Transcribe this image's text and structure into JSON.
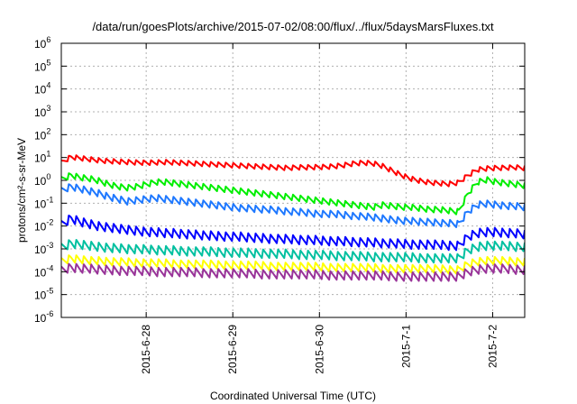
{
  "chart_data": {
    "type": "line",
    "title": "/data/run/goesPlots/archive/2015-07-02/08:00/flux/../flux/5daysMarsFluxes.txt",
    "xlabel": "Coordinated Universal Time (UTC)",
    "ylabel": "protons/cm²-s-sr-MeV",
    "yscale": "log",
    "ylim": [
      1e-06,
      1000000.0
    ],
    "xlim_days": [
      -1.98,
      1.37
    ],
    "x_ticks": [
      {
        "label": "2015-6-28",
        "day": -1.0
      },
      {
        "label": "2015-6-29",
        "day": 0.0
      },
      {
        "label": "2015-6-30",
        "day": 1.0
      },
      {
        "label": "2015-7-1",
        "day": 2.0
      },
      {
        "label": "2015-7-2",
        "day": 3.0
      }
    ],
    "y_ticks": [
      "-6",
      "-5",
      "-4",
      "-3",
      "-2",
      "-1",
      "0",
      "1",
      "2",
      "3",
      "4",
      "5",
      "6"
    ],
    "grid": true,
    "legend": "none",
    "series": [
      {
        "color": "#ff0000",
        "start_day": -1.98,
        "end_day": 3.37,
        "points": 50,
        "log10_values": [
          0.75,
          1.0,
          0.95,
          0.9,
          0.85,
          0.82,
          0.8,
          0.78,
          0.76,
          0.75,
          0.76,
          0.78,
          0.76,
          0.74,
          0.72,
          0.7,
          0.68,
          0.66,
          0.64,
          0.62,
          0.6,
          0.58,
          0.56,
          0.54,
          0.52,
          0.55,
          0.55,
          0.56,
          0.57,
          0.6,
          0.65,
          0.72,
          0.75,
          0.72,
          0.6,
          0.4,
          0.2,
          0.05,
          -0.05,
          -0.12,
          -0.15,
          -0.18,
          -0.12,
          0.2,
          0.45,
          0.5,
          0.52,
          0.53,
          0.55,
          0.52
        ],
        "sawtooth": 0.25
      },
      {
        "color": "#00ee00",
        "start_day": -1.98,
        "end_day": 3.37,
        "points": 50,
        "log10_values": [
          0.0,
          0.2,
          0.1,
          0.05,
          -0.05,
          -0.2,
          -0.3,
          -0.35,
          -0.3,
          -0.2,
          -0.1,
          -0.1,
          -0.15,
          -0.2,
          -0.25,
          -0.3,
          -0.35,
          -0.4,
          -0.45,
          -0.5,
          -0.55,
          -0.6,
          -0.65,
          -0.7,
          -0.75,
          -0.8,
          -0.85,
          -0.9,
          -0.95,
          -1.0,
          -1.05,
          -1.1,
          -1.15,
          -1.2,
          -1.1,
          -1.15,
          -1.2,
          -1.2,
          -1.25,
          -1.3,
          -1.3,
          -1.35,
          -1.4,
          -0.6,
          -0.1,
          0.0,
          -0.1,
          -0.15,
          -0.2,
          -0.25
        ],
        "sawtooth": 0.3
      },
      {
        "color": "#1e78ff",
        "start_day": -1.98,
        "end_day": 3.37,
        "points": 50,
        "log10_values": [
          -0.5,
          -0.3,
          -0.4,
          -0.5,
          -0.6,
          -0.75,
          -0.85,
          -0.95,
          -0.9,
          -0.85,
          -0.8,
          -0.85,
          -0.9,
          -0.95,
          -1.0,
          -1.05,
          -1.1,
          -1.15,
          -1.2,
          -1.25,
          -1.25,
          -1.3,
          -1.3,
          -1.35,
          -1.4,
          -1.4,
          -1.45,
          -1.5,
          -1.5,
          -1.5,
          -1.55,
          -1.6,
          -1.6,
          -1.65,
          -1.7,
          -1.75,
          -1.8,
          -1.8,
          -1.85,
          -1.85,
          -1.9,
          -1.9,
          -1.95,
          -1.4,
          -1.1,
          -1.05,
          -1.1,
          -1.15,
          -1.15,
          -1.2
        ],
        "sawtooth": 0.35
      },
      {
        "color": "#0000ff",
        "start_day": -1.98,
        "end_day": 3.37,
        "points": 50,
        "log10_values": [
          -2.0,
          -1.7,
          -1.85,
          -1.95,
          -2.05,
          -2.1,
          -2.15,
          -2.2,
          -2.25,
          -2.3,
          -2.3,
          -2.35,
          -2.35,
          -2.4,
          -2.4,
          -2.45,
          -2.45,
          -2.5,
          -2.5,
          -2.5,
          -2.55,
          -2.55,
          -2.6,
          -2.6,
          -2.6,
          -2.65,
          -2.65,
          -2.65,
          -2.7,
          -2.7,
          -2.7,
          -2.75,
          -2.75,
          -2.75,
          -2.8,
          -2.8,
          -2.8,
          -2.85,
          -2.85,
          -2.85,
          -2.85,
          -2.9,
          -2.9,
          -2.5,
          -2.35,
          -2.3,
          -2.3,
          -2.35,
          -2.35,
          -2.4
        ],
        "sawtooth": 0.45
      },
      {
        "color": "#00c0a0",
        "start_day": -1.98,
        "end_day": 3.37,
        "points": 50,
        "log10_values": [
          -3.0,
          -2.8,
          -2.85,
          -2.9,
          -2.95,
          -3.0,
          -3.0,
          -3.05,
          -3.05,
          -3.05,
          -3.1,
          -3.1,
          -3.1,
          -3.15,
          -3.15,
          -3.15,
          -3.15,
          -3.2,
          -3.2,
          -3.2,
          -3.2,
          -3.25,
          -3.25,
          -3.25,
          -3.25,
          -3.3,
          -3.3,
          -3.3,
          -3.3,
          -3.35,
          -3.35,
          -3.35,
          -3.35,
          -3.4,
          -3.4,
          -3.4,
          -3.4,
          -3.4,
          -3.45,
          -3.45,
          -3.45,
          -3.45,
          -3.45,
          -3.1,
          -2.95,
          -2.9,
          -2.9,
          -2.9,
          -2.95,
          -2.95
        ],
        "sawtooth": 0.45
      },
      {
        "color": "#ffff00",
        "start_day": -1.98,
        "end_day": 3.37,
        "points": 50,
        "log10_values": [
          -3.6,
          -3.45,
          -3.5,
          -3.55,
          -3.55,
          -3.6,
          -3.6,
          -3.6,
          -3.65,
          -3.65,
          -3.65,
          -3.65,
          -3.7,
          -3.7,
          -3.7,
          -3.7,
          -3.7,
          -3.75,
          -3.75,
          -3.75,
          -3.75,
          -3.75,
          -3.8,
          -3.8,
          -3.8,
          -3.8,
          -3.8,
          -3.8,
          -3.85,
          -3.85,
          -3.85,
          -3.85,
          -3.85,
          -3.85,
          -3.9,
          -3.9,
          -3.9,
          -3.9,
          -3.9,
          -3.9,
          -3.9,
          -3.95,
          -3.95,
          -3.7,
          -3.6,
          -3.55,
          -3.55,
          -3.55,
          -3.6,
          -3.6
        ],
        "sawtooth": 0.4
      },
      {
        "color": "#993399",
        "start_day": -1.98,
        "end_day": 3.37,
        "points": 50,
        "log10_values": [
          -4.0,
          -3.85,
          -3.9,
          -3.9,
          -3.95,
          -3.95,
          -4.0,
          -4.0,
          -4.0,
          -4.0,
          -4.05,
          -4.05,
          -4.05,
          -4.05,
          -4.05,
          -4.1,
          -4.1,
          -4.1,
          -4.1,
          -4.1,
          -4.1,
          -4.15,
          -4.15,
          -4.15,
          -4.15,
          -4.15,
          -4.15,
          -4.15,
          -4.2,
          -4.2,
          -4.2,
          -4.2,
          -4.2,
          -4.2,
          -4.2,
          -4.25,
          -4.25,
          -4.25,
          -4.25,
          -4.25,
          -4.25,
          -4.25,
          -4.25,
          -4.05,
          -3.95,
          -3.9,
          -3.9,
          -3.9,
          -3.95,
          -3.95
        ],
        "sawtooth": 0.45
      }
    ]
  }
}
